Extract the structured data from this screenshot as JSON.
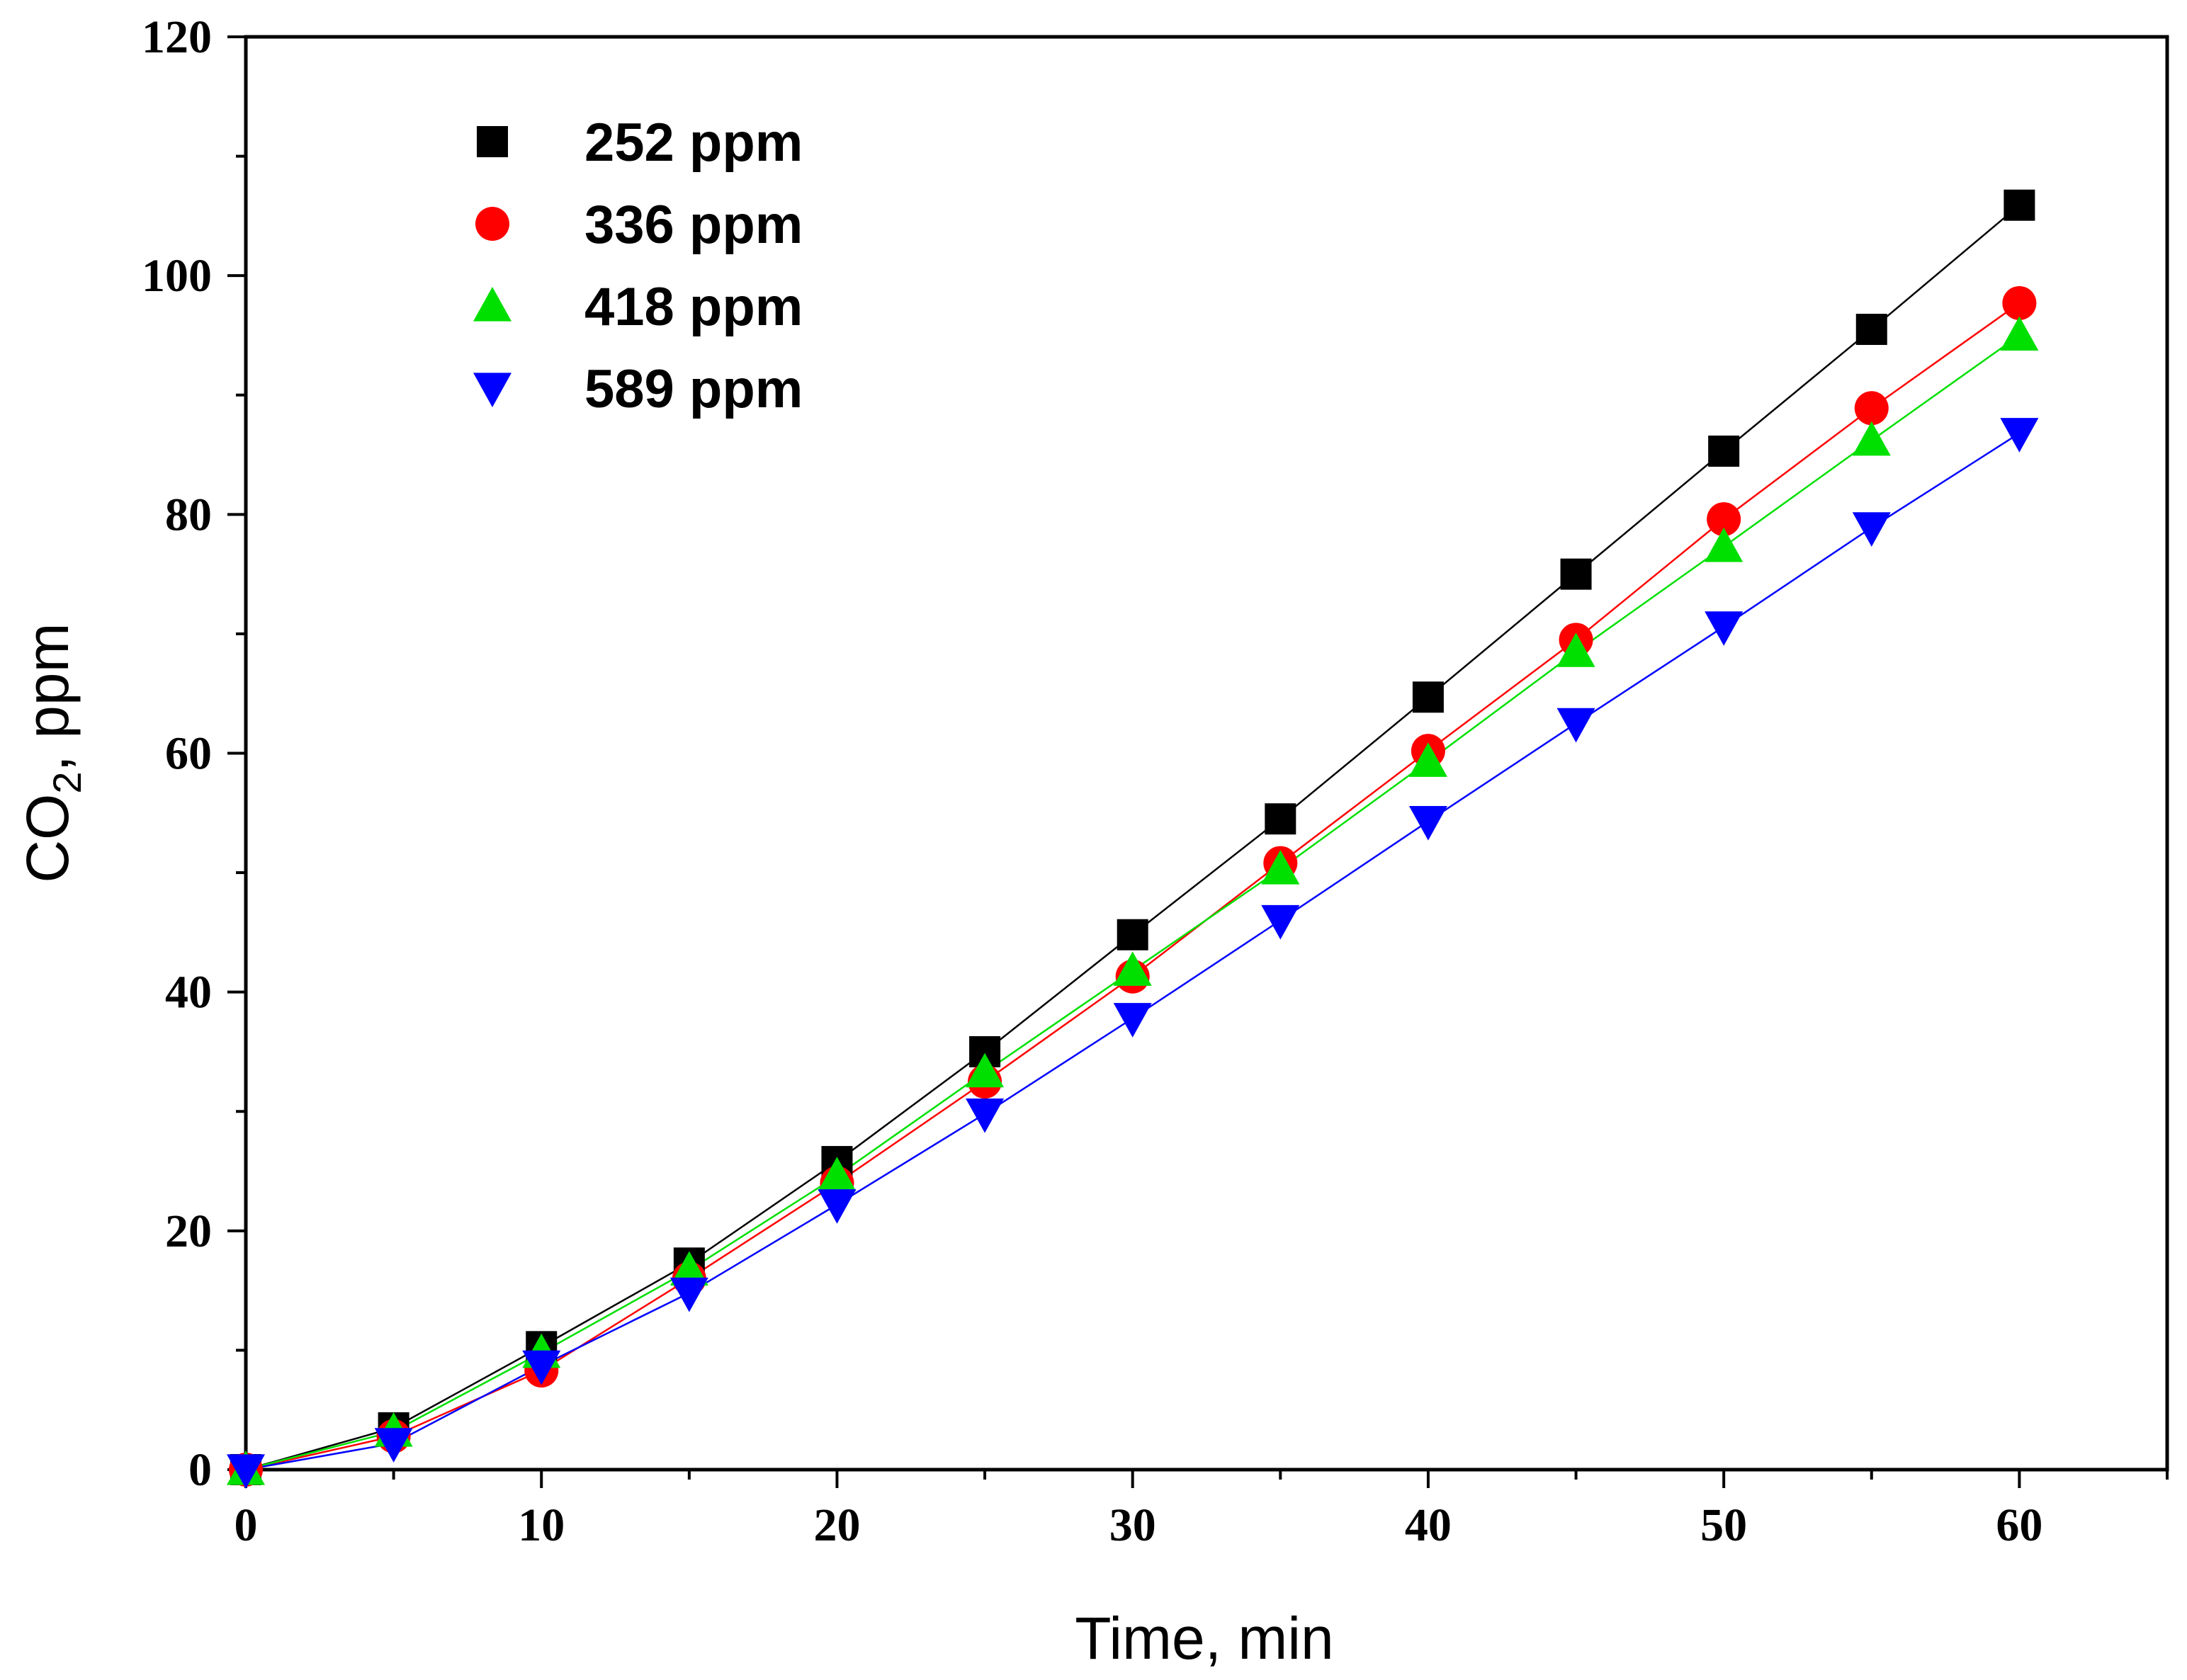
{
  "chart_data": {
    "type": "line",
    "title": "",
    "xlabel": "Time, min",
    "ylabel_main": "CO",
    "ylabel_sub": "2",
    "ylabel_tail": ", ppm",
    "xlim": [
      0,
      65
    ],
    "ylim": [
      0,
      120
    ],
    "xticks": [
      0,
      10,
      20,
      30,
      40,
      50,
      60
    ],
    "yticks": [
      0,
      20,
      40,
      60,
      80,
      100,
      120
    ],
    "xticks_minor": [
      5,
      15,
      25,
      35,
      45,
      55,
      65
    ],
    "yticks_minor": [
      10,
      30,
      50,
      70,
      90,
      110
    ],
    "grid": false,
    "legend_position": "top-left",
    "x": [
      0,
      5,
      10,
      15,
      20,
      25,
      30,
      35,
      40,
      45,
      50,
      55,
      60
    ],
    "series": [
      {
        "name": "252 ppm",
        "marker": "square",
        "color": "#000000",
        "values": [
          0,
          3.5,
          10.3,
          17.3,
          25.8,
          35.0,
          44.8,
          54.5,
          64.7,
          75.0,
          85.3,
          95.5,
          105.9
        ]
      },
      {
        "name": "336 ppm",
        "marker": "circle",
        "color": "#ff0000",
        "values": [
          0,
          2.8,
          8.3,
          16.0,
          24.0,
          32.5,
          41.3,
          50.8,
          60.2,
          69.5,
          79.6,
          88.9,
          97.7
        ]
      },
      {
        "name": "418 ppm",
        "marker": "triangle-up",
        "color": "#00e000",
        "values": [
          0,
          3.2,
          9.8,
          16.7,
          24.6,
          33.3,
          41.8,
          50.3,
          59.3,
          68.5,
          77.3,
          86.2,
          95.0
        ]
      },
      {
        "name": "589 ppm",
        "marker": "triangle-down",
        "color": "#0000ff",
        "values": [
          0,
          2.2,
          8.7,
          14.8,
          22.2,
          29.8,
          37.8,
          46.0,
          54.3,
          62.5,
          70.6,
          78.9,
          86.8
        ]
      }
    ]
  }
}
